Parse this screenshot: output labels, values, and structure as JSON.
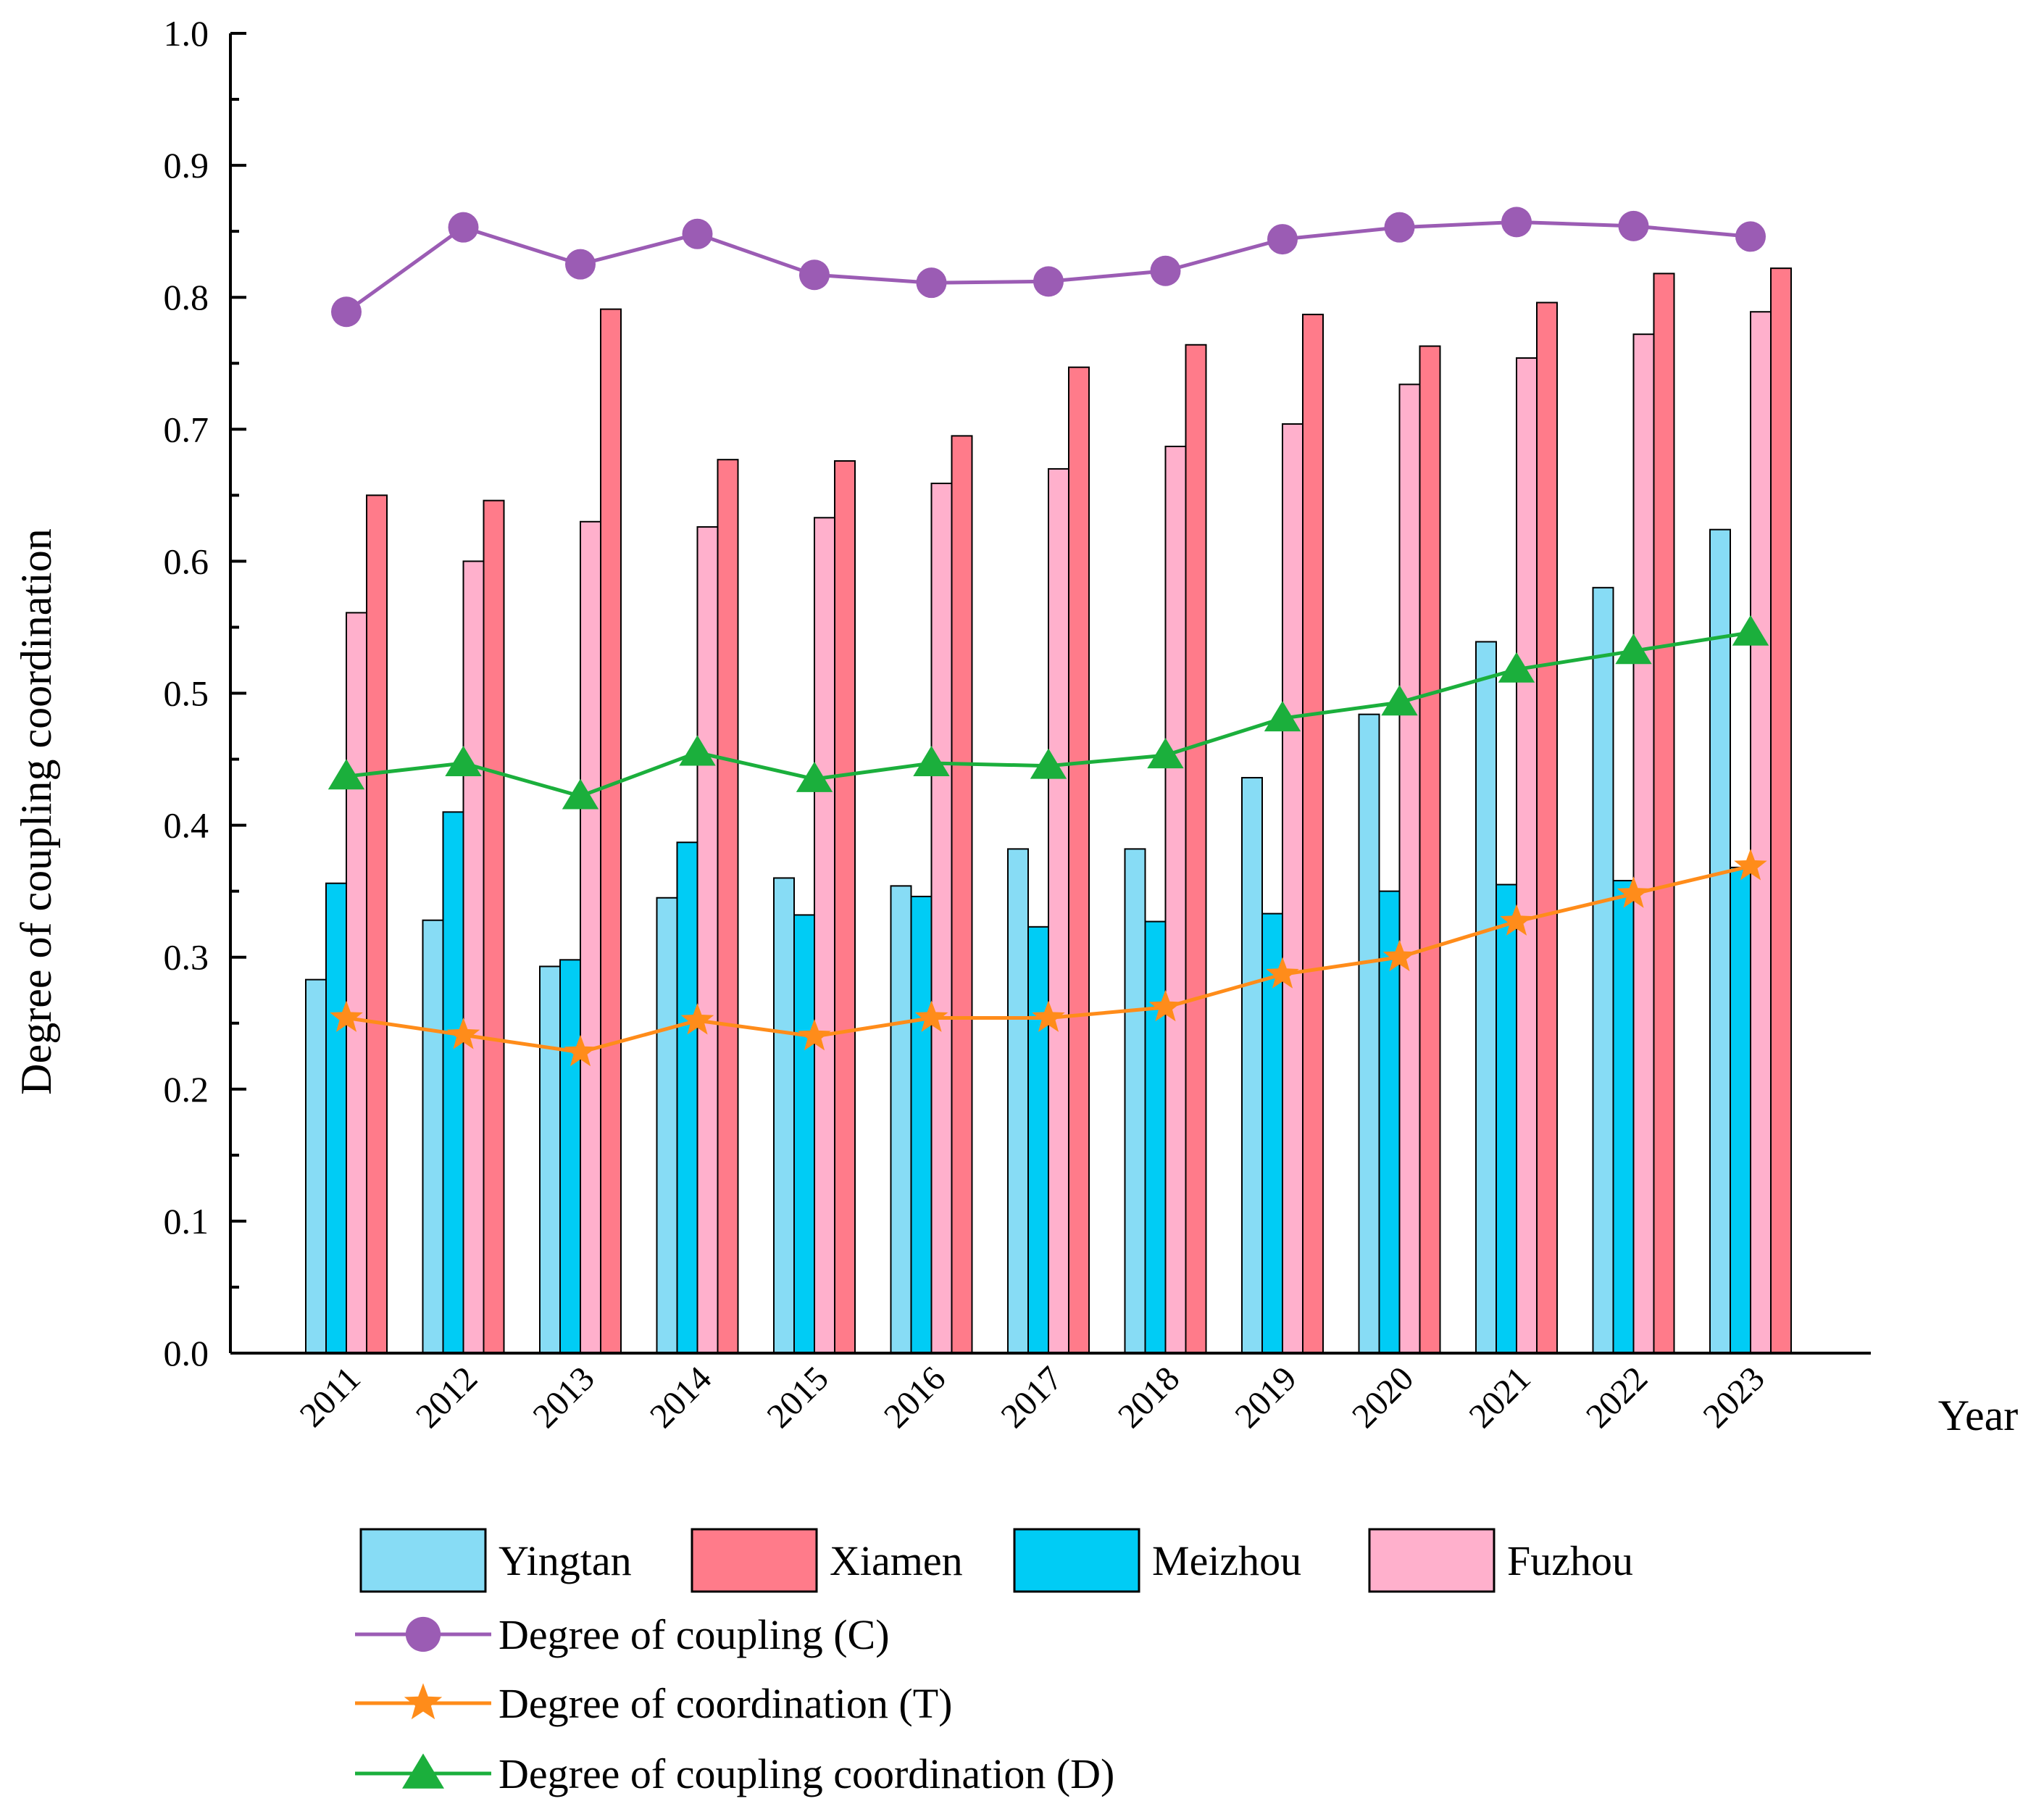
{
  "chart_data": {
    "type": "bar+line",
    "title": "",
    "xlabel": "Year",
    "ylabel": "Degree of coupling coordination",
    "ylim": [
      0.0,
      1.0
    ],
    "yticks": [
      "0.0",
      "0.1",
      "0.2",
      "0.3",
      "0.4",
      "0.5",
      "0.6",
      "0.7",
      "0.8",
      "0.9",
      "1.0"
    ],
    "categories": [
      "2011",
      "2012",
      "2013",
      "2014",
      "2015",
      "2016",
      "2017",
      "2018",
      "2019",
      "2020",
      "2021",
      "2022",
      "2023"
    ],
    "bar_series": [
      {
        "name": "Yingtan",
        "color": "#87DCF5",
        "values": [
          0.283,
          0.328,
          0.293,
          0.345,
          0.36,
          0.354,
          0.382,
          0.382,
          0.436,
          0.484,
          0.539,
          0.58,
          0.624
        ]
      },
      {
        "name": "Meizhou",
        "color": "#00CCF5",
        "values": [
          0.356,
          0.41,
          0.298,
          0.387,
          0.332,
          0.346,
          0.323,
          0.327,
          0.333,
          0.35,
          0.355,
          0.358,
          0.368
        ]
      },
      {
        "name": "Fuzhou",
        "color": "#FFB0CC",
        "values": [
          0.561,
          0.6,
          0.63,
          0.626,
          0.633,
          0.659,
          0.67,
          0.687,
          0.704,
          0.734,
          0.754,
          0.772,
          0.789
        ]
      },
      {
        "name": "Xiamen",
        "color": "#FF7B8A",
        "values": [
          0.65,
          0.646,
          0.791,
          0.677,
          0.676,
          0.695,
          0.747,
          0.764,
          0.787,
          0.763,
          0.796,
          0.818,
          0.822
        ]
      }
    ],
    "line_series": [
      {
        "name": "Degree of coupling (C)",
        "color": "#9B5CB4",
        "marker": "circle",
        "values": [
          0.789,
          0.853,
          0.825,
          0.848,
          0.817,
          0.811,
          0.812,
          0.82,
          0.844,
          0.853,
          0.857,
          0.854,
          0.846
        ]
      },
      {
        "name": "Degree of coordination (T)",
        "color": "#FF8C1A",
        "marker": "star",
        "values": [
          0.254,
          0.241,
          0.228,
          0.252,
          0.24,
          0.254,
          0.254,
          0.262,
          0.287,
          0.3,
          0.327,
          0.348,
          0.369
        ]
      },
      {
        "name": "Degree of coupling coordination (D)",
        "color": "#1BAF3C",
        "marker": "triangle",
        "values": [
          0.437,
          0.447,
          0.422,
          0.455,
          0.435,
          0.447,
          0.445,
          0.453,
          0.481,
          0.493,
          0.518,
          0.532,
          0.546
        ]
      }
    ],
    "legend": {
      "bar_items": [
        "Yingtan",
        "Xiamen",
        "Meizhou",
        "Fuzhou"
      ],
      "line_items": [
        "Degree of coupling (C)",
        "Degree of coordination (T)",
        "Degree of coupling coordination (D)"
      ]
    }
  }
}
